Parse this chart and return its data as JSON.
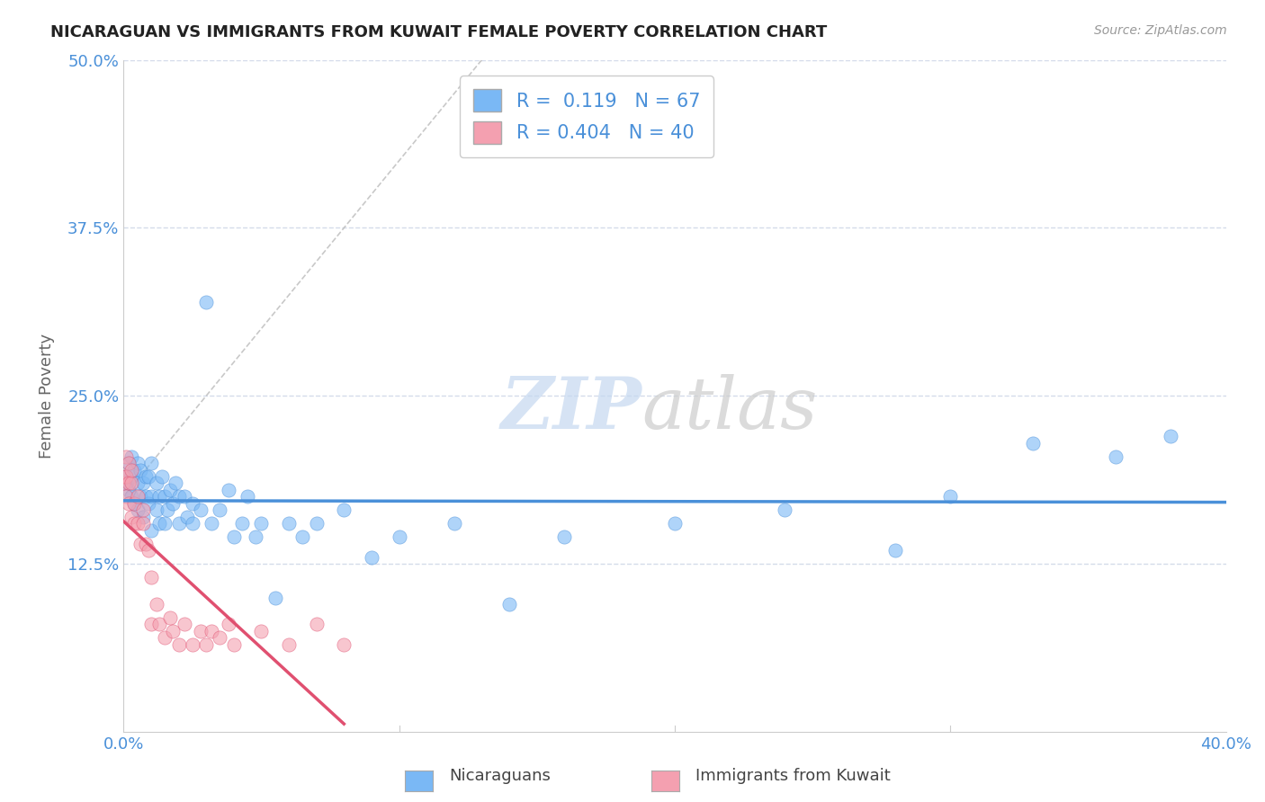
{
  "title": "NICARAGUAN VS IMMIGRANTS FROM KUWAIT FEMALE POVERTY CORRELATION CHART",
  "source": "Source: ZipAtlas.com",
  "xlabel_nicaraguans": "Nicaraguans",
  "xlabel_kuwait": "Immigrants from Kuwait",
  "ylabel": "Female Poverty",
  "xlim": [
    0.0,
    0.4
  ],
  "ylim": [
    0.0,
    0.5
  ],
  "xtick_labels": [
    "0.0%",
    "40.0%"
  ],
  "ytick_labels": [
    "12.5%",
    "25.0%",
    "37.5%",
    "50.0%"
  ],
  "ytick_values": [
    0.125,
    0.25,
    0.375,
    0.5
  ],
  "r_nicaraguan": 0.119,
  "n_nicaraguan": 67,
  "r_kuwait": 0.404,
  "n_kuwait": 40,
  "color_nicaraguan": "#7ab8f5",
  "color_kuwait": "#f4a0b0",
  "color_line_nicaraguan": "#4a90d9",
  "color_line_kuwait": "#e05070",
  "background_color": "#ffffff",
  "grid_color": "#d0d8e8",
  "nicaraguan_x": [
    0.001,
    0.001,
    0.002,
    0.002,
    0.003,
    0.003,
    0.003,
    0.004,
    0.004,
    0.005,
    0.005,
    0.005,
    0.006,
    0.006,
    0.007,
    0.007,
    0.008,
    0.008,
    0.009,
    0.009,
    0.01,
    0.01,
    0.01,
    0.012,
    0.012,
    0.013,
    0.013,
    0.014,
    0.015,
    0.015,
    0.016,
    0.017,
    0.018,
    0.019,
    0.02,
    0.02,
    0.022,
    0.023,
    0.025,
    0.025,
    0.028,
    0.03,
    0.032,
    0.035,
    0.038,
    0.04,
    0.043,
    0.045,
    0.048,
    0.05,
    0.055,
    0.06,
    0.065,
    0.07,
    0.08,
    0.09,
    0.1,
    0.12,
    0.14,
    0.16,
    0.2,
    0.24,
    0.28,
    0.3,
    0.33,
    0.36,
    0.38
  ],
  "nicaraguan_y": [
    0.185,
    0.19,
    0.18,
    0.2,
    0.175,
    0.19,
    0.205,
    0.17,
    0.195,
    0.165,
    0.185,
    0.2,
    0.175,
    0.195,
    0.16,
    0.185,
    0.175,
    0.19,
    0.17,
    0.19,
    0.15,
    0.175,
    0.2,
    0.165,
    0.185,
    0.155,
    0.175,
    0.19,
    0.155,
    0.175,
    0.165,
    0.18,
    0.17,
    0.185,
    0.155,
    0.175,
    0.175,
    0.16,
    0.155,
    0.17,
    0.165,
    0.32,
    0.155,
    0.165,
    0.18,
    0.145,
    0.155,
    0.175,
    0.145,
    0.155,
    0.1,
    0.155,
    0.145,
    0.155,
    0.165,
    0.13,
    0.145,
    0.155,
    0.095,
    0.145,
    0.155,
    0.165,
    0.135,
    0.175,
    0.215,
    0.205,
    0.22
  ],
  "kuwait_x": [
    0.0,
    0.0,
    0.001,
    0.001,
    0.001,
    0.002,
    0.002,
    0.002,
    0.003,
    0.003,
    0.003,
    0.004,
    0.004,
    0.005,
    0.005,
    0.006,
    0.007,
    0.007,
    0.008,
    0.009,
    0.01,
    0.01,
    0.012,
    0.013,
    0.015,
    0.017,
    0.018,
    0.02,
    0.022,
    0.025,
    0.028,
    0.03,
    0.032,
    0.035,
    0.038,
    0.04,
    0.05,
    0.06,
    0.07,
    0.08
  ],
  "kuwait_y": [
    0.185,
    0.19,
    0.175,
    0.19,
    0.205,
    0.17,
    0.185,
    0.2,
    0.16,
    0.185,
    0.195,
    0.155,
    0.17,
    0.155,
    0.175,
    0.14,
    0.155,
    0.165,
    0.14,
    0.135,
    0.115,
    0.08,
    0.095,
    0.08,
    0.07,
    0.085,
    0.075,
    0.065,
    0.08,
    0.065,
    0.075,
    0.065,
    0.075,
    0.07,
    0.08,
    0.065,
    0.075,
    0.065,
    0.08,
    0.065
  ],
  "ref_line_x": [
    0.13,
    0.0
  ],
  "ref_line_y": [
    0.5,
    0.175
  ]
}
